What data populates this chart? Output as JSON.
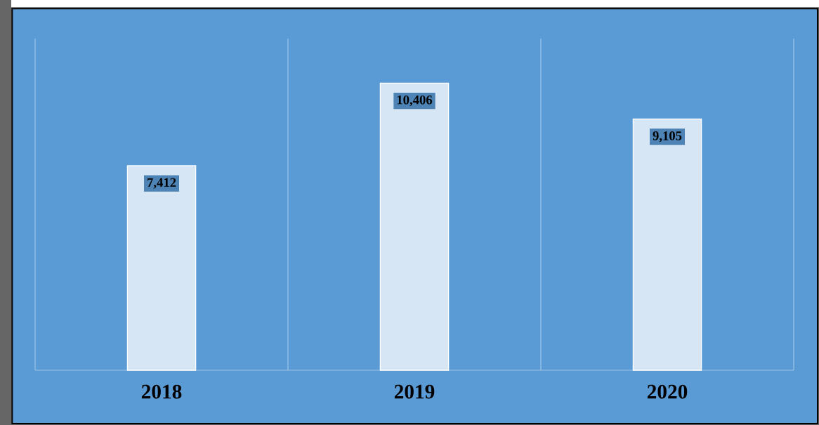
{
  "chart_data": {
    "type": "bar",
    "categories": [
      "2018",
      "2019",
      "2020"
    ],
    "values": [
      7412,
      10406,
      9105
    ],
    "value_labels": [
      "7,412",
      "10,406",
      "9,105"
    ],
    "color": "#d6e6f5",
    "grid": "x"
  }
}
